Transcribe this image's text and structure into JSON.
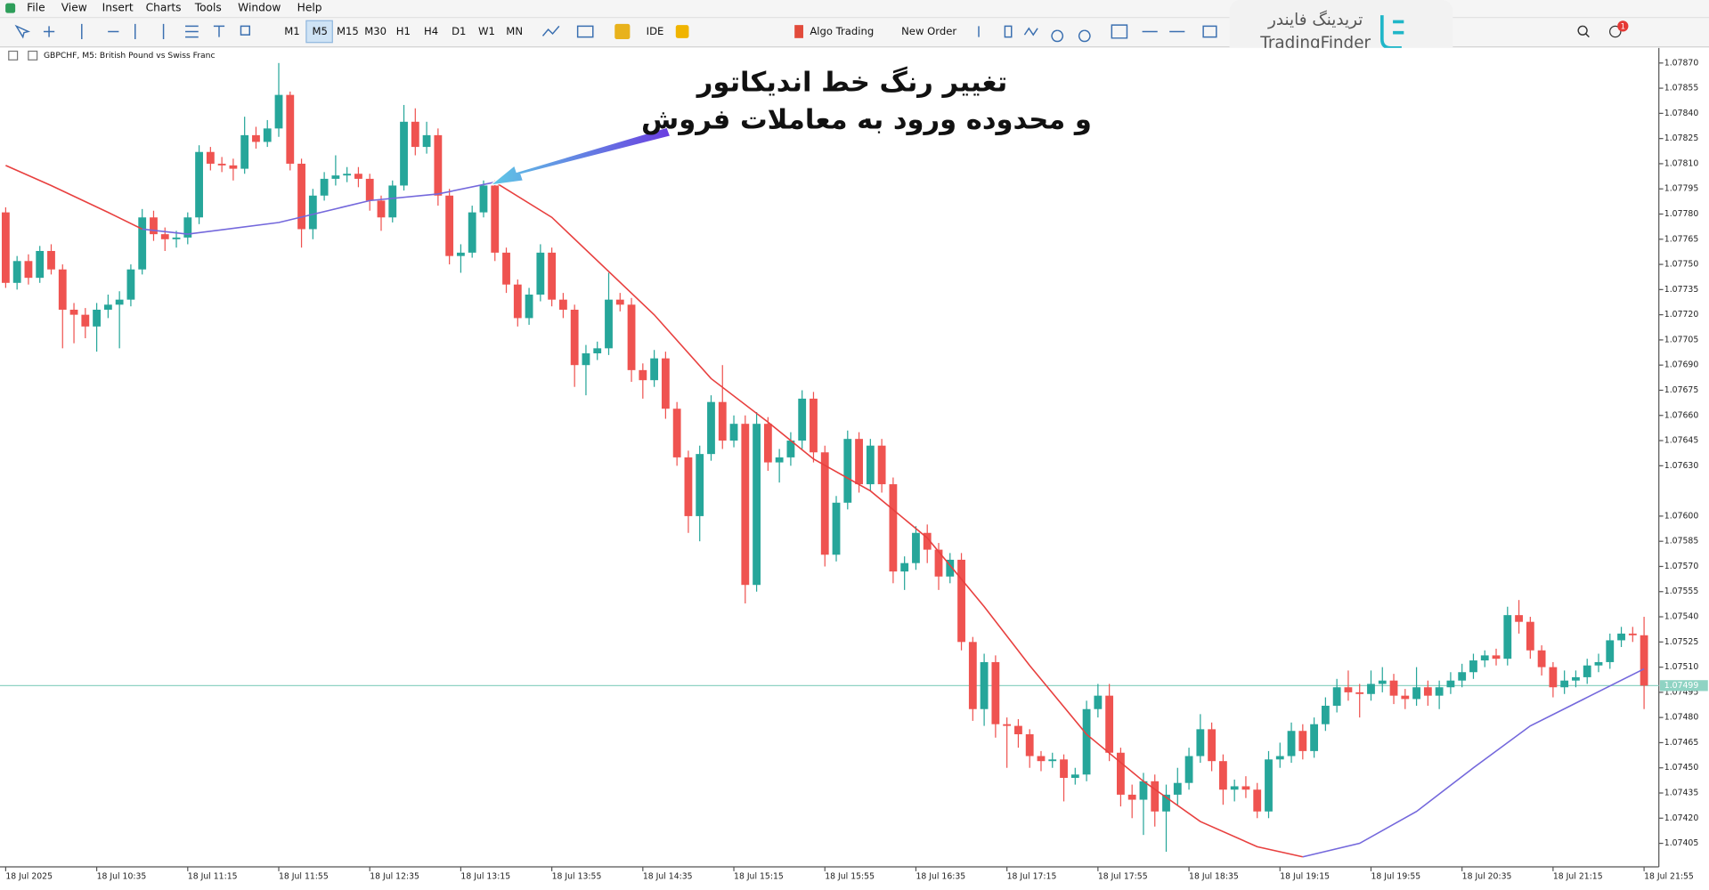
{
  "menu": [
    "File",
    "View",
    "Insert",
    "Charts",
    "Tools",
    "Window",
    "Help"
  ],
  "toolbar": {
    "timeframes": [
      "M1",
      "M5",
      "M15",
      "M30",
      "H1",
      "H4",
      "D1",
      "W1",
      "MN"
    ],
    "ide": "IDE",
    "algo_trading": "Algo Trading",
    "new_order": "New Order",
    "notification_count": 1
  },
  "logo": {
    "fa": "تریدینگ فایندر",
    "en": "TradingFinder"
  },
  "chart_data": {
    "type": "candlestick",
    "title": "GBPCHF, M5:  British Pound vs Swiss Franc",
    "annotation": [
      "تغییر رنگ خط اندیکاتور",
      "و محدوده ورود به معاملات فروش"
    ],
    "up_color": "#26a69a",
    "down_color": "#ef5350",
    "xlim": [
      -0.5,
      145.3
    ],
    "ylim": [
      1.07391,
      1.07879
    ],
    "candles": [
      [
        1.07781,
        1.07784,
        1.07736,
        1.07739
      ],
      [
        1.07739,
        1.07755,
        1.07735,
        1.07752
      ],
      [
        1.07752,
        1.07756,
        1.07738,
        1.07742
      ],
      [
        1.07742,
        1.07761,
        1.07739,
        1.07758
      ],
      [
        1.07758,
        1.07762,
        1.07744,
        1.07747
      ],
      [
        1.07747,
        1.0775,
        1.077,
        1.07723
      ],
      [
        1.07723,
        1.07727,
        1.07703,
        1.0772
      ],
      [
        1.0772,
        1.07724,
        1.07706,
        1.07713
      ],
      [
        1.07713,
        1.07727,
        1.07698,
        1.07723
      ],
      [
        1.07723,
        1.07732,
        1.07718,
        1.07726
      ],
      [
        1.07726,
        1.07734,
        1.077,
        1.07729
      ],
      [
        1.07729,
        1.0775,
        1.07725,
        1.07747
      ],
      [
        1.07747,
        1.07783,
        1.07744,
        1.07778
      ],
      [
        1.07778,
        1.07782,
        1.07764,
        1.07768
      ],
      [
        1.07768,
        1.07772,
        1.07758,
        1.07765
      ],
      [
        1.07765,
        1.0777,
        1.0776,
        1.07766
      ],
      [
        1.07766,
        1.07781,
        1.07762,
        1.07778
      ],
      [
        1.07778,
        1.07821,
        1.07774,
        1.07817
      ],
      [
        1.07817,
        1.0782,
        1.07806,
        1.0781
      ],
      [
        1.0781,
        1.07814,
        1.07805,
        1.07809
      ],
      [
        1.07809,
        1.07813,
        1.078,
        1.07807
      ],
      [
        1.07807,
        1.07838,
        1.07804,
        1.07827
      ],
      [
        1.07827,
        1.07832,
        1.07819,
        1.07823
      ],
      [
        1.07823,
        1.07836,
        1.0782,
        1.07831
      ],
      [
        1.07831,
        1.0787,
        1.07826,
        1.07851
      ],
      [
        1.07851,
        1.07853,
        1.07806,
        1.0781
      ],
      [
        1.0781,
        1.07813,
        1.0776,
        1.07771
      ],
      [
        1.07771,
        1.07795,
        1.07765,
        1.07791
      ],
      [
        1.07791,
        1.07805,
        1.07788,
        1.07801
      ],
      [
        1.07801,
        1.07815,
        1.07797,
        1.07803
      ],
      [
        1.07803,
        1.07808,
        1.07799,
        1.07804
      ],
      [
        1.07804,
        1.07808,
        1.07796,
        1.07801
      ],
      [
        1.07801,
        1.07804,
        1.07782,
        1.07788
      ],
      [
        1.07788,
        1.07791,
        1.0777,
        1.07778
      ],
      [
        1.07778,
        1.078,
        1.07775,
        1.07797
      ],
      [
        1.07797,
        1.07845,
        1.07794,
        1.07835
      ],
      [
        1.07835,
        1.07843,
        1.07815,
        1.0782
      ],
      [
        1.0782,
        1.07835,
        1.07816,
        1.07827
      ],
      [
        1.07827,
        1.07831,
        1.07785,
        1.07791
      ],
      [
        1.07791,
        1.07795,
        1.0775,
        1.07755
      ],
      [
        1.07755,
        1.07762,
        1.07745,
        1.07757
      ],
      [
        1.07757,
        1.07785,
        1.07754,
        1.07781
      ],
      [
        1.07781,
        1.078,
        1.07778,
        1.07797
      ],
      [
        1.07797,
        1.078,
        1.07752,
        1.07757
      ],
      [
        1.07757,
        1.0776,
        1.07733,
        1.07738
      ],
      [
        1.07738,
        1.07741,
        1.07713,
        1.07718
      ],
      [
        1.07718,
        1.07736,
        1.07714,
        1.07732
      ],
      [
        1.07732,
        1.07762,
        1.07728,
        1.07757
      ],
      [
        1.07757,
        1.0776,
        1.07725,
        1.07729
      ],
      [
        1.07729,
        1.07733,
        1.07718,
        1.07723
      ],
      [
        1.07723,
        1.07726,
        1.07677,
        1.0769
      ],
      [
        1.0769,
        1.07702,
        1.07672,
        1.07697
      ],
      [
        1.07697,
        1.07704,
        1.07693,
        1.077
      ],
      [
        1.077,
        1.07745,
        1.07696,
        1.07729
      ],
      [
        1.07729,
        1.07733,
        1.07722,
        1.07726
      ],
      [
        1.07726,
        1.0773,
        1.0768,
        1.07687
      ],
      [
        1.07687,
        1.07691,
        1.0767,
        1.07681
      ],
      [
        1.07681,
        1.07699,
        1.07677,
        1.07694
      ],
      [
        1.07694,
        1.07698,
        1.07658,
        1.07664
      ],
      [
        1.07664,
        1.07668,
        1.0763,
        1.07635
      ],
      [
        1.07635,
        1.07639,
        1.0759,
        1.076
      ],
      [
        1.076,
        1.07642,
        1.07585,
        1.07637
      ],
      [
        1.07637,
        1.07672,
        1.07633,
        1.07668
      ],
      [
        1.07668,
        1.0769,
        1.0764,
        1.07645
      ],
      [
        1.07645,
        1.0766,
        1.07641,
        1.07655
      ],
      [
        1.07655,
        1.0766,
        1.07548,
        1.07559
      ],
      [
        1.07559,
        1.07662,
        1.07555,
        1.07655
      ],
      [
        1.07655,
        1.07659,
        1.07627,
        1.07632
      ],
      [
        1.07632,
        1.0764,
        1.0762,
        1.07635
      ],
      [
        1.07635,
        1.0765,
        1.0763,
        1.07645
      ],
      [
        1.07645,
        1.07675,
        1.0764,
        1.0767
      ],
      [
        1.0767,
        1.07674,
        1.07632,
        1.07638
      ],
      [
        1.07638,
        1.07642,
        1.0757,
        1.07577
      ],
      [
        1.07577,
        1.07612,
        1.07573,
        1.07608
      ],
      [
        1.07608,
        1.07651,
        1.07604,
        1.07646
      ],
      [
        1.07646,
        1.0765,
        1.07614,
        1.07619
      ],
      [
        1.07619,
        1.07646,
        1.07615,
        1.07642
      ],
      [
        1.07642,
        1.07646,
        1.07614,
        1.07619
      ],
      [
        1.07619,
        1.07623,
        1.0756,
        1.07567
      ],
      [
        1.07567,
        1.07576,
        1.07556,
        1.07572
      ],
      [
        1.07572,
        1.07594,
        1.07568,
        1.0759
      ],
      [
        1.0759,
        1.07595,
        1.07572,
        1.0758
      ],
      [
        1.0758,
        1.07584,
        1.07556,
        1.07564
      ],
      [
        1.07564,
        1.07578,
        1.0756,
        1.07574
      ],
      [
        1.07574,
        1.07578,
        1.0752,
        1.07525
      ],
      [
        1.07525,
        1.07528,
        1.07478,
        1.07485
      ],
      [
        1.07485,
        1.07518,
        1.07475,
        1.07513
      ],
      [
        1.07513,
        1.07517,
        1.07468,
        1.07476
      ],
      [
        1.07476,
        1.0748,
        1.0745,
        1.07475
      ],
      [
        1.07475,
        1.07479,
        1.07462,
        1.0747
      ],
      [
        1.0747,
        1.07473,
        1.0745,
        1.07457
      ],
      [
        1.07457,
        1.0746,
        1.07448,
        1.07454
      ],
      [
        1.07454,
        1.07459,
        1.0745,
        1.07455
      ],
      [
        1.07455,
        1.07458,
        1.0743,
        1.07444
      ],
      [
        1.07444,
        1.0745,
        1.0744,
        1.07446
      ],
      [
        1.07446,
        1.0749,
        1.07442,
        1.07485
      ],
      [
        1.07485,
        1.075,
        1.0748,
        1.07493
      ],
      [
        1.07493,
        1.075,
        1.07454,
        1.07459
      ],
      [
        1.07459,
        1.07462,
        1.07427,
        1.07434
      ],
      [
        1.07434,
        1.0744,
        1.0742,
        1.07431
      ],
      [
        1.07431,
        1.07447,
        1.0741,
        1.07442
      ],
      [
        1.07442,
        1.07446,
        1.07415,
        1.07424
      ],
      [
        1.07424,
        1.0744,
        1.074,
        1.07434
      ],
      [
        1.07434,
        1.0745,
        1.07428,
        1.07441
      ],
      [
        1.07441,
        1.07462,
        1.07437,
        1.07457
      ],
      [
        1.07457,
        1.07482,
        1.07453,
        1.07473
      ],
      [
        1.07473,
        1.07477,
        1.07448,
        1.07454
      ],
      [
        1.07454,
        1.07458,
        1.07428,
        1.07437
      ],
      [
        1.07437,
        1.07443,
        1.0743,
        1.07439
      ],
      [
        1.07439,
        1.07445,
        1.07432,
        1.07437
      ],
      [
        1.07437,
        1.07441,
        1.0742,
        1.07424
      ],
      [
        1.07424,
        1.0746,
        1.0742,
        1.07455
      ],
      [
        1.07455,
        1.07465,
        1.0745,
        1.07457
      ],
      [
        1.07457,
        1.07477,
        1.07453,
        1.07472
      ],
      [
        1.07472,
        1.07476,
        1.07455,
        1.0746
      ],
      [
        1.0746,
        1.0748,
        1.07456,
        1.07476
      ],
      [
        1.07476,
        1.07492,
        1.07472,
        1.07487
      ],
      [
        1.07487,
        1.07503,
        1.07483,
        1.07498
      ],
      [
        1.07498,
        1.07508,
        1.0749,
        1.07495
      ],
      [
        1.07495,
        1.075,
        1.0748,
        1.07494
      ],
      [
        1.07494,
        1.07508,
        1.0749,
        1.075
      ],
      [
        1.075,
        1.0751,
        1.07495,
        1.07502
      ],
      [
        1.07502,
        1.07506,
        1.07488,
        1.07493
      ],
      [
        1.07493,
        1.07497,
        1.07485,
        1.07491
      ],
      [
        1.07491,
        1.0751,
        1.07487,
        1.07498
      ],
      [
        1.07498,
        1.07502,
        1.07487,
        1.07493
      ],
      [
        1.07493,
        1.07502,
        1.07485,
        1.07498
      ],
      [
        1.07498,
        1.07507,
        1.07494,
        1.07502
      ],
      [
        1.07502,
        1.07512,
        1.07498,
        1.07507
      ],
      [
        1.07507,
        1.07518,
        1.07503,
        1.07514
      ],
      [
        1.07514,
        1.0752,
        1.0751,
        1.07517
      ],
      [
        1.07517,
        1.07521,
        1.07511,
        1.07515
      ],
      [
        1.07515,
        1.07546,
        1.07511,
        1.07541
      ],
      [
        1.07541,
        1.0755,
        1.0753,
        1.07537
      ],
      [
        1.07537,
        1.0754,
        1.07515,
        1.0752
      ],
      [
        1.0752,
        1.07523,
        1.07505,
        1.0751
      ],
      [
        1.0751,
        1.07513,
        1.07492,
        1.07498
      ],
      [
        1.07498,
        1.07508,
        1.07494,
        1.07502
      ],
      [
        1.07502,
        1.07508,
        1.07498,
        1.07504
      ],
      [
        1.07504,
        1.07515,
        1.075,
        1.07511
      ],
      [
        1.07511,
        1.07518,
        1.07507,
        1.07513
      ],
      [
        1.07513,
        1.0753,
        1.07509,
        1.07526
      ],
      [
        1.07526,
        1.07534,
        1.07522,
        1.0753
      ],
      [
        1.0753,
        1.07534,
        1.07525,
        1.07529
      ],
      [
        1.07529,
        1.0754,
        1.07485,
        1.07499
      ]
    ],
    "series": [
      {
        "color": "#e8403f",
        "x": [
          0,
          4,
          9,
          12
        ],
        "values": [
          1.07809,
          1.07797,
          1.07781,
          1.07771
        ]
      },
      {
        "color": "#7468dc",
        "x": [
          12,
          16,
          24,
          32,
          38,
          43
        ],
        "values": [
          1.07771,
          1.07768,
          1.07775,
          1.07788,
          1.07792,
          1.07799
        ]
      },
      {
        "color": "#e8403f",
        "x": [
          43,
          48,
          57,
          62,
          67,
          71,
          76,
          81,
          86,
          90,
          95,
          100,
          105,
          110,
          114
        ],
        "values": [
          1.07799,
          1.07778,
          1.0772,
          1.07682,
          1.07656,
          1.07634,
          1.07615,
          1.07587,
          1.07546,
          1.07511,
          1.0747,
          1.07442,
          1.07418,
          1.07403,
          1.07397
        ]
      },
      {
        "color": "#7468dc",
        "x": [
          114,
          119,
          124,
          129,
          134,
          139,
          144
        ],
        "values": [
          1.07397,
          1.07405,
          1.07424,
          1.0745,
          1.07475,
          1.07492,
          1.07509
        ]
      }
    ],
    "price_line": {
      "value": 1.07499,
      "label": "1.07499",
      "color": "#8fd3c3"
    },
    "yticks": [
      {
        "value": 1.0787,
        "label": "1.07870"
      },
      {
        "value": 1.07855,
        "label": "1.07855"
      },
      {
        "value": 1.0784,
        "label": "1.07840"
      },
      {
        "value": 1.07825,
        "label": "1.07825"
      },
      {
        "value": 1.0781,
        "label": "1.07810"
      },
      {
        "value": 1.07795,
        "label": "1.07795"
      },
      {
        "value": 1.0778,
        "label": "1.07780"
      },
      {
        "value": 1.07765,
        "label": "1.07765"
      },
      {
        "value": 1.0775,
        "label": "1.07750"
      },
      {
        "value": 1.07735,
        "label": "1.07735"
      },
      {
        "value": 1.0772,
        "label": "1.07720"
      },
      {
        "value": 1.07705,
        "label": "1.07705"
      },
      {
        "value": 1.0769,
        "label": "1.07690"
      },
      {
        "value": 1.07675,
        "label": "1.07675"
      },
      {
        "value": 1.0766,
        "label": "1.07660"
      },
      {
        "value": 1.07645,
        "label": "1.07645"
      },
      {
        "value": 1.0763,
        "label": "1.07630"
      },
      {
        "value": 1.076,
        "label": "1.07600"
      },
      {
        "value": 1.07585,
        "label": "1.07585"
      },
      {
        "value": 1.0757,
        "label": "1.07570"
      },
      {
        "value": 1.07555,
        "label": "1.07555"
      },
      {
        "value": 1.0754,
        "label": "1.07540"
      },
      {
        "value": 1.07525,
        "label": "1.07525"
      },
      {
        "value": 1.0751,
        "label": "1.07510"
      },
      {
        "value": 1.07495,
        "label": "1.07495"
      },
      {
        "value": 1.0748,
        "label": "1.07480"
      },
      {
        "value": 1.07465,
        "label": "1.07465"
      },
      {
        "value": 1.0745,
        "label": "1.07450"
      },
      {
        "value": 1.07435,
        "label": "1.07435"
      },
      {
        "value": 1.0742,
        "label": "1.07420"
      },
      {
        "value": 1.07405,
        "label": "1.07405"
      }
    ],
    "xticks": [
      {
        "value": 0,
        "label": "18 Jul 2025"
      },
      {
        "value": 8,
        "label": "18 Jul 10:35"
      },
      {
        "value": 16,
        "label": "18 Jul 11:15"
      },
      {
        "value": 24,
        "label": "18 Jul 11:55"
      },
      {
        "value": 32,
        "label": "18 Jul 12:35"
      },
      {
        "value": 40,
        "label": "18 Jul 13:15"
      },
      {
        "value": 48,
        "label": "18 Jul 13:55"
      },
      {
        "value": 56,
        "label": "18 Jul 14:35"
      },
      {
        "value": 64,
        "label": "18 Jul 15:15"
      },
      {
        "value": 72,
        "label": "18 Jul 15:55"
      },
      {
        "value": 80,
        "label": "18 Jul 16:35"
      },
      {
        "value": 88,
        "label": "18 Jul 17:15"
      },
      {
        "value": 96,
        "label": "18 Jul 17:55"
      },
      {
        "value": 104,
        "label": "18 Jul 18:35"
      },
      {
        "value": 112,
        "label": "18 Jul 19:15"
      },
      {
        "value": 120,
        "label": "18 Jul 19:55"
      },
      {
        "value": 128,
        "label": "18 Jul 20:35"
      },
      {
        "value": 136,
        "label": "18 Jul 21:15"
      },
      {
        "value": 144,
        "label": "18 Jul 21:55"
      }
    ]
  }
}
